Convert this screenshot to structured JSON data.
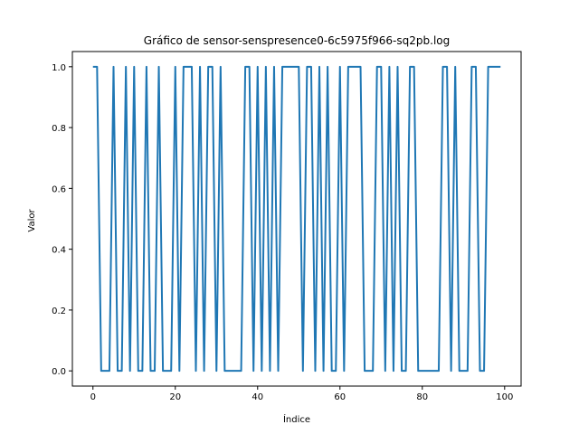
{
  "chart_data": {
    "type": "line",
    "title": "Gráfico de sensor-senspresence0-6c5975f966-sq2pb.log",
    "xlabel": "Índice",
    "ylabel": "Valor",
    "xlim": [
      -5,
      104
    ],
    "ylim": [
      -0.05,
      1.05
    ],
    "xticks": [
      0,
      20,
      40,
      60,
      80,
      100
    ],
    "yticks": [
      0.0,
      0.2,
      0.4,
      0.6,
      0.8,
      1.0
    ],
    "xtick_labels": [
      "0",
      "20",
      "40",
      "60",
      "80",
      "100"
    ],
    "ytick_labels": [
      "0.0",
      "0.2",
      "0.4",
      "0.6",
      "0.8",
      "1.0"
    ],
    "grid": false,
    "series": [
      {
        "color": "#1f77b4",
        "x": [
          0,
          1,
          2,
          3,
          4,
          5,
          6,
          7,
          8,
          9,
          10,
          11,
          12,
          13,
          14,
          15,
          16,
          17,
          18,
          19,
          20,
          21,
          22,
          23,
          24,
          25,
          26,
          27,
          28,
          29,
          30,
          31,
          32,
          33,
          34,
          35,
          36,
          37,
          38,
          39,
          40,
          41,
          42,
          43,
          44,
          45,
          46,
          47,
          48,
          49,
          50,
          51,
          52,
          53,
          54,
          55,
          56,
          57,
          58,
          59,
          60,
          61,
          62,
          63,
          64,
          65,
          66,
          67,
          68,
          69,
          70,
          71,
          72,
          73,
          74,
          75,
          76,
          77,
          78,
          79,
          80,
          81,
          82,
          83,
          84,
          85,
          86,
          87,
          88,
          89,
          90,
          91,
          92,
          93,
          94,
          95,
          96,
          97,
          98,
          99
        ],
        "y": [
          1,
          1,
          0,
          0,
          0,
          1,
          0,
          0,
          1,
          0,
          1,
          0,
          0,
          1,
          0,
          0,
          1,
          0,
          0,
          0,
          1,
          0,
          1,
          1,
          1,
          0,
          1,
          0,
          1,
          1,
          0,
          1,
          0,
          0,
          0,
          0,
          0,
          1,
          1,
          0,
          1,
          0,
          1,
          0,
          1,
          0,
          1,
          1,
          1,
          1,
          1,
          0,
          1,
          1,
          0,
          1,
          0,
          1,
          0,
          0,
          1,
          0,
          1,
          1,
          1,
          1,
          0,
          0,
          0,
          1,
          1,
          0,
          1,
          0,
          1,
          0,
          0,
          1,
          1,
          0,
          0,
          0,
          0,
          0,
          0,
          1,
          1,
          0,
          1,
          0,
          0,
          0,
          1,
          1,
          0,
          0,
          1,
          1,
          1,
          1
        ]
      }
    ]
  }
}
